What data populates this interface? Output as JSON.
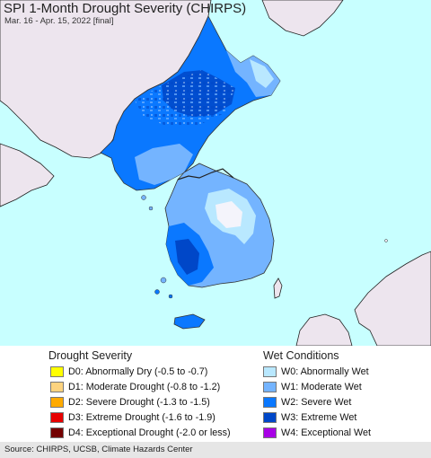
{
  "header": {
    "title": "SPI 1-Month Drought Severity (CHIRPS)",
    "subtitle": "Mar. 16 - Apr. 15, 2022 [final]"
  },
  "legend": {
    "drought": {
      "title": "Drought Severity",
      "items": [
        {
          "label": "D0: Abnormally Dry (-0.5 to -0.7)",
          "color": "#ffff00"
        },
        {
          "label": "D1: Moderate Drought (-0.8 to -1.2)",
          "color": "#fcd37f"
        },
        {
          "label": "D2: Severe Drought (-1.3 to -1.5)",
          "color": "#ffaa00"
        },
        {
          "label": "D3: Extreme Drought (-1.6 to -1.9)",
          "color": "#e60000"
        },
        {
          "label": "D4: Exceptional Drought (-2.0 or less)",
          "color": "#730000"
        }
      ]
    },
    "wet": {
      "title": "Wet Conditions",
      "items": [
        {
          "label": "W0: Abnormally Wet",
          "color": "#b9e8ff"
        },
        {
          "label": "W1: Moderate Wet",
          "color": "#74b4ff"
        },
        {
          "label": "W2: Severe Wet",
          "color": "#0a78ff"
        },
        {
          "label": "W3: Extreme Wet",
          "color": "#0047c8"
        },
        {
          "label": "W4: Exceptional Wet",
          "color": "#a800e6"
        }
      ]
    }
  },
  "map": {
    "sea_color": "#c8ffff",
    "land_color": "#ede5ee"
  },
  "footer": {
    "source": "Source: CHIRPS, UCSB, Climate Hazards Center"
  }
}
